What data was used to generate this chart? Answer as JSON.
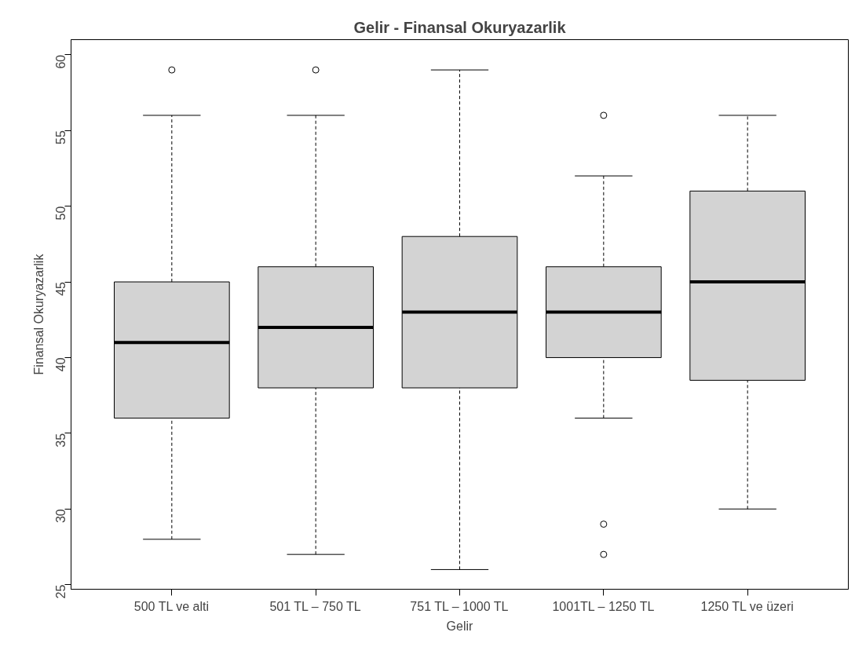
{
  "chart_data": {
    "type": "box",
    "title": "Gelir - Finansal Okuryazarlik",
    "xlabel": "Gelir",
    "ylabel": "Finansal Okuryazarlik",
    "categories": [
      "500 TL ve alti",
      "501 TL – 750 TL",
      "751 TL – 1000 TL",
      "1001TL – 1250 TL",
      "1250 TL ve üzeri"
    ],
    "series": [
      {
        "color": "#d3d3d3",
        "boxes": [
          {
            "low": 28,
            "q1": 36,
            "median": 41,
            "q3": 45,
            "high": 56,
            "outliers": [
              59
            ]
          },
          {
            "low": 27,
            "q1": 38,
            "median": 42,
            "q3": 46,
            "high": 56,
            "outliers": [
              59
            ]
          },
          {
            "low": 26,
            "q1": 38,
            "median": 43,
            "q3": 48,
            "high": 59
          },
          {
            "low": 36,
            "q1": 40,
            "median": 43,
            "q3": 46,
            "high": 52,
            "outliers": [
              56,
              29,
              27
            ]
          },
          {
            "low": 30,
            "q1": 38.5,
            "median": 45,
            "q3": 51,
            "high": 56
          }
        ]
      }
    ],
    "ylim": [
      24.7,
      61.0
    ],
    "yticks": [
      25,
      30,
      35,
      40,
      45,
      50,
      55,
      60
    ]
  }
}
